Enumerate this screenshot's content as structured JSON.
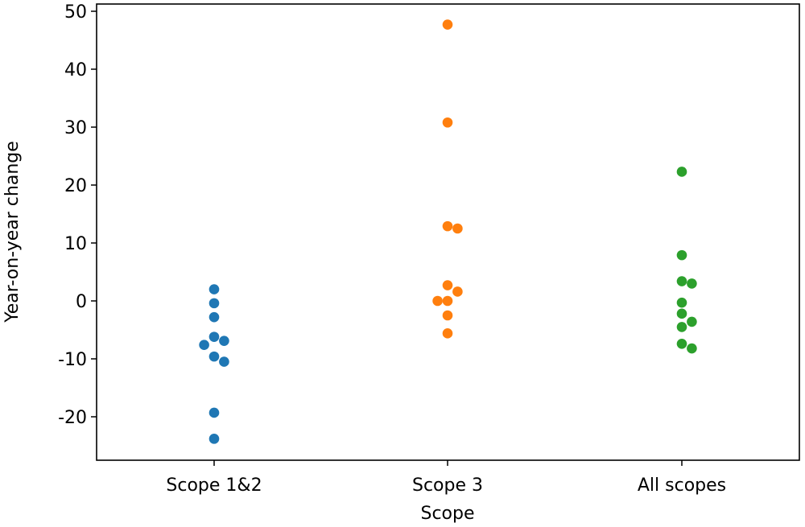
{
  "chart_data": {
    "type": "scatter",
    "title": "",
    "xlabel": "Scope",
    "ylabel": "Year-on-year change",
    "categories": [
      "Scope 1&2",
      "Scope 3",
      "All scopes"
    ],
    "ylim": [
      -28,
      51
    ],
    "yticks": [
      -20,
      -10,
      0,
      10,
      20,
      30,
      40,
      50
    ],
    "ytick_labels": [
      "-20",
      "-10",
      "0",
      "10",
      "20",
      "30",
      "40",
      "50"
    ],
    "grid": false,
    "legend": "none",
    "series": [
      {
        "category": "Scope 1&2",
        "color": "#1f77b4",
        "values": [
          2.0,
          -0.4,
          -2.8,
          -6.2,
          -6.9,
          -7.6,
          -9.6,
          -10.5,
          -19.3,
          -23.8
        ]
      },
      {
        "category": "Scope 3",
        "color": "#ff7f0e",
        "values": [
          47.7,
          30.8,
          12.9,
          12.5,
          2.7,
          1.6,
          0.0,
          0.0,
          -2.5,
          -5.6
        ]
      },
      {
        "category": "All scopes",
        "color": "#2ca02c",
        "values": [
          22.3,
          7.9,
          3.4,
          3.0,
          -0.3,
          -2.2,
          -3.6,
          -4.5,
          -7.4,
          -8.2
        ]
      }
    ]
  }
}
